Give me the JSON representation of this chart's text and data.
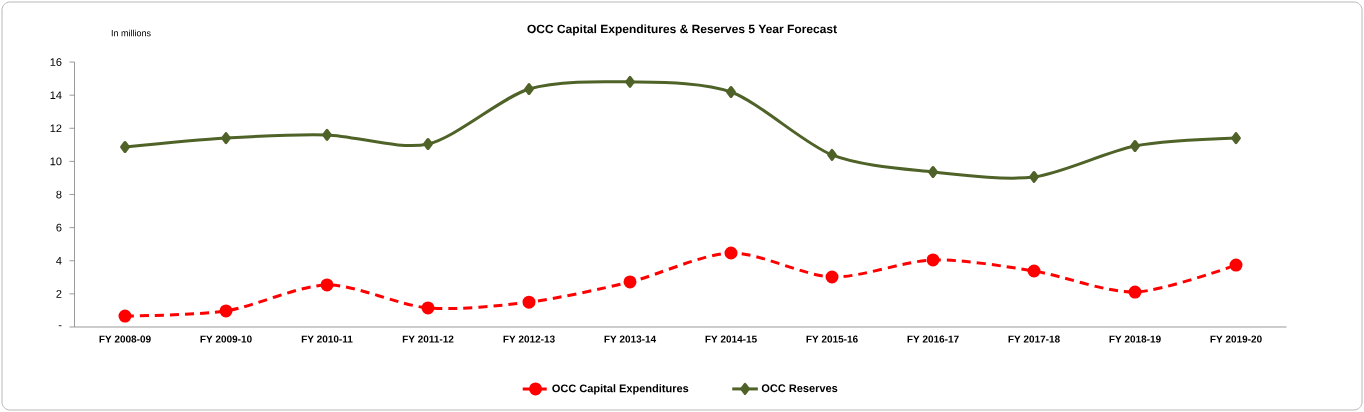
{
  "chart_data": {
    "type": "line",
    "title": "OCC Capital Expenditures & Reserves 5 Year Forecast",
    "ylabel": "In millions",
    "categories": [
      "FY 2008-09",
      "FY 2009-10",
      "FY 2010-11",
      "FY 2011-12",
      "FY 2012-13",
      "FY 2013-14",
      "FY 2014-15",
      "FY 2015-16",
      "FY 2016-17",
      "FY 2017-18",
      "FY 2018-19",
      "FY 2019-20"
    ],
    "series": [
      {
        "name": "OCC Capital Expenditures",
        "color": "#ff0000",
        "marker": "circle",
        "line_style": "dashed",
        "values": [
          0.66,
          0.97,
          2.54,
          1.15,
          1.5,
          2.72,
          4.47,
          3.02,
          4.05,
          3.38,
          2.11,
          3.74
        ]
      },
      {
        "name": "OCC Reserves",
        "color": "#4f6228",
        "marker": "diamond",
        "line_style": "solid",
        "values": [
          10.87,
          11.41,
          11.6,
          11.05,
          14.37,
          14.8,
          14.19,
          10.39,
          9.36,
          9.06,
          10.93,
          11.41
        ]
      }
    ],
    "ylim": [
      0,
      16
    ],
    "yticks": [
      {
        "value": 0,
        "label": "-"
      },
      2,
      4,
      6,
      8,
      10,
      12,
      14,
      16
    ],
    "legend": "bottom",
    "grid": false
  }
}
